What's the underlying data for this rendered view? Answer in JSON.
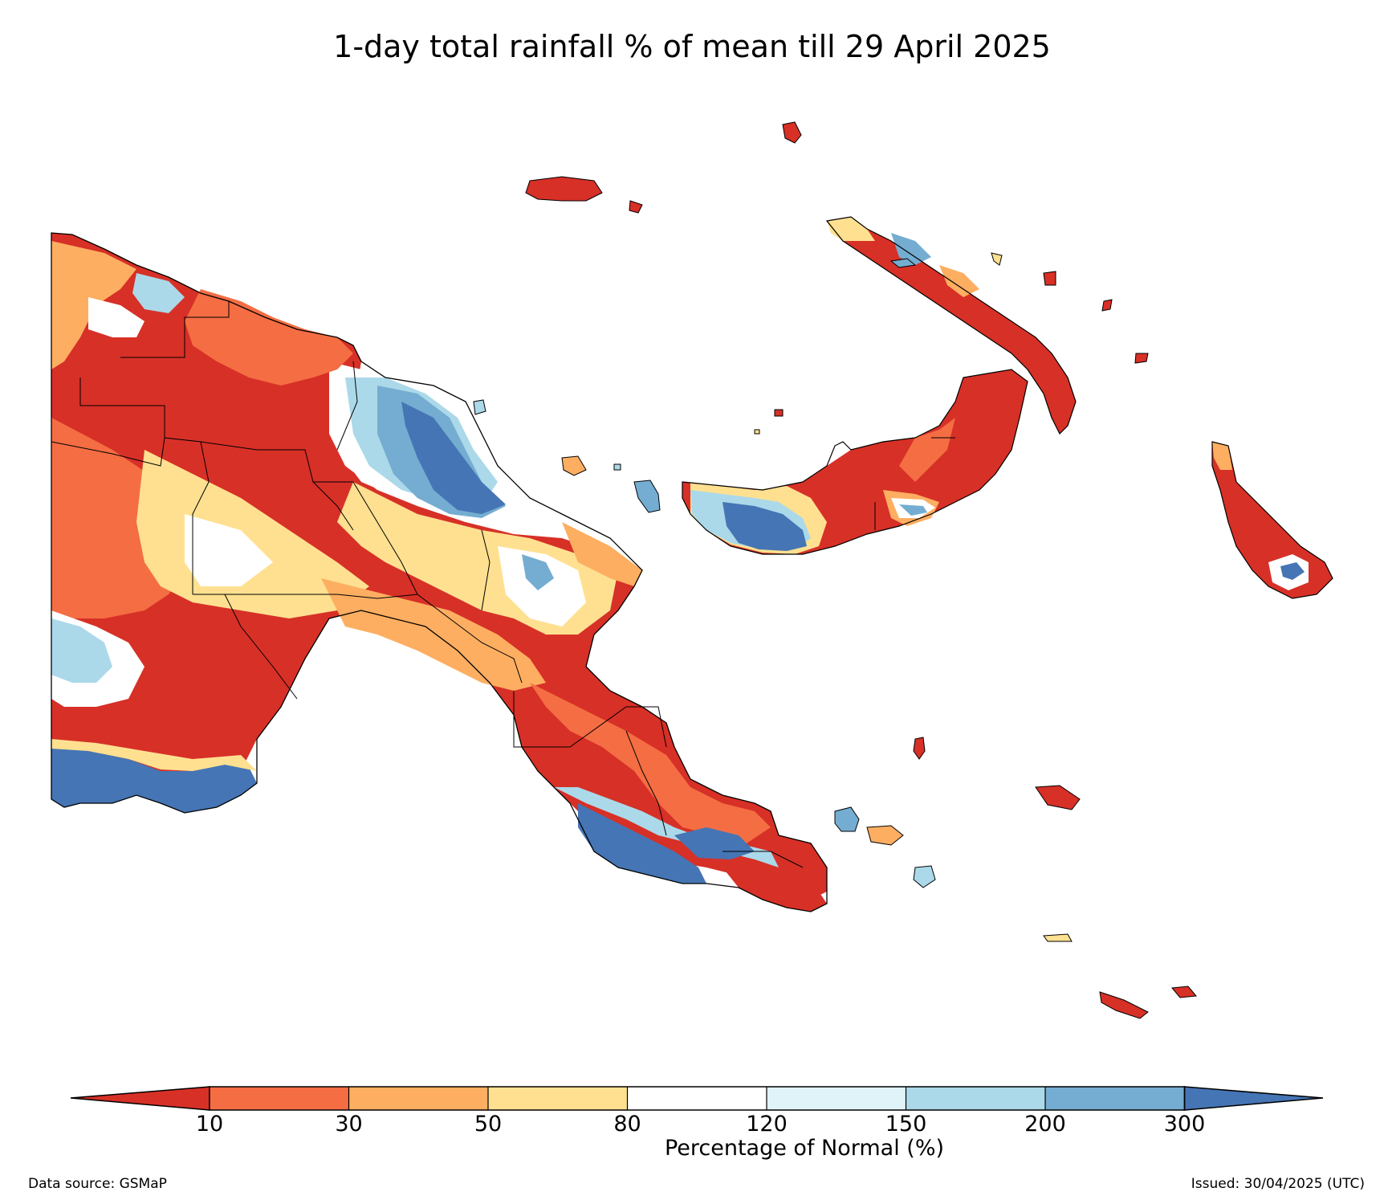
{
  "title": "1-day total rainfall % of mean till 29 April 2025",
  "legend": {
    "label": "Percentage of Normal (%)",
    "ticks": [
      "10",
      "30",
      "50",
      "80",
      "120",
      "150",
      "200",
      "300"
    ],
    "colors": [
      "#d73027",
      "#f46d43",
      "#fdae61",
      "#fee090",
      "#ffffff",
      "#e0f3f8",
      "#abd9e9",
      "#74add1",
      "#4575b4"
    ],
    "extend": "both"
  },
  "footer": {
    "source": "Data source: GSMaP",
    "issued": "Issued: 30/04/2025 (UTC)"
  },
  "map": {
    "region": "Papua New Guinea",
    "variable": "rainfall percent of mean",
    "background": "#ffffff",
    "boundary_color": "#000000"
  }
}
